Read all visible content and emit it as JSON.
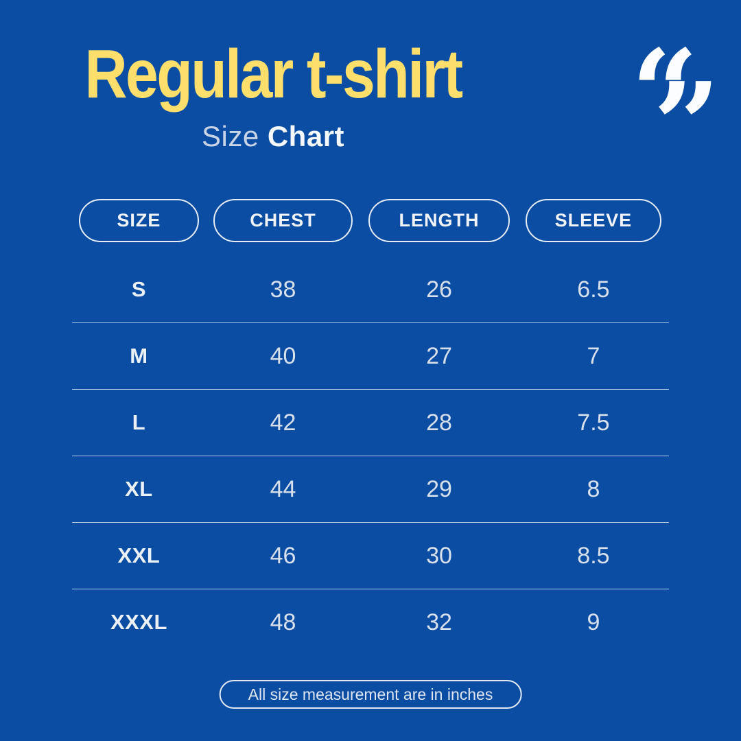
{
  "colors": {
    "background": "#0B4DA2",
    "title_yellow": "#FFDF6B",
    "subtitle_light": "#C9D4E6",
    "text_white": "#F5F8FC",
    "number_text": "#D8E0EC",
    "pill_border": "#E7EDF6"
  },
  "header": {
    "title": "Regular t-shirt",
    "subtitle": {
      "regular": "Size",
      "bold": "Chart"
    },
    "quote_open": "“",
    "quote_close": "”"
  },
  "table": {
    "columns": [
      "SIZE",
      "CHEST",
      "LENGTH",
      "SLEEVE"
    ],
    "rows": [
      [
        "S",
        "38",
        "26",
        "6.5"
      ],
      [
        "M",
        "40",
        "27",
        "7"
      ],
      [
        "L",
        "42",
        "28",
        "7.5"
      ],
      [
        "XL",
        "44",
        "29",
        "8"
      ],
      [
        "XXL",
        "46",
        "30",
        "8.5"
      ],
      [
        "XXXL",
        "48",
        "32",
        "9"
      ]
    ]
  },
  "footer": {
    "note": "All size measurement are in inches"
  },
  "chart_data": {
    "type": "table",
    "title": "Regular t-shirt Size Chart",
    "columns": [
      "SIZE",
      "CHEST",
      "LENGTH",
      "SLEEVE"
    ],
    "rows": [
      [
        "S",
        38,
        26,
        6.5
      ],
      [
        "M",
        40,
        27,
        7
      ],
      [
        "L",
        42,
        28,
        7.5
      ],
      [
        "XL",
        44,
        29,
        8
      ],
      [
        "XXL",
        46,
        30,
        8.5
      ],
      [
        "XXXL",
        48,
        32,
        9
      ]
    ],
    "units": "inches",
    "note": "All size measurement are in inches"
  }
}
